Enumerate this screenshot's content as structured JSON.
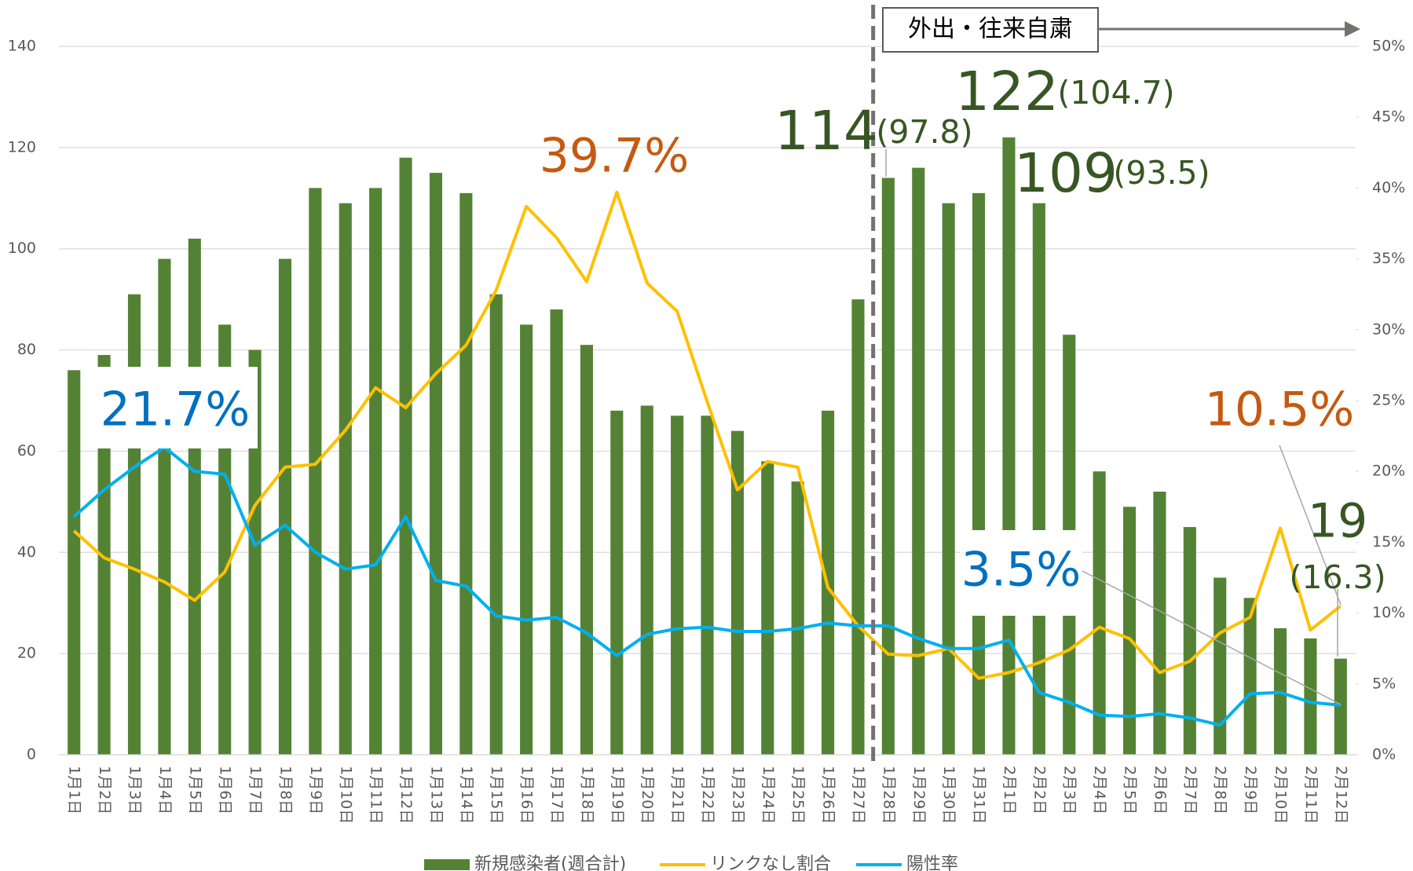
{
  "chart_data": {
    "type": "bar",
    "categories": [
      "1月1日",
      "1月2日",
      "1月3日",
      "1月4日",
      "1月5日",
      "1月6日",
      "1月7日",
      "1月8日",
      "1月9日",
      "1月10日",
      "1月11日",
      "1月12日",
      "1月13日",
      "1月14日",
      "1月15日",
      "1月16日",
      "1月17日",
      "1月18日",
      "1月19日",
      "1月20日",
      "1月21日",
      "1月22日",
      "1月23日",
      "1月24日",
      "1月25日",
      "1月26日",
      "1月27日",
      "1月28日",
      "1月29日",
      "1月30日",
      "1月31日",
      "2月1日",
      "2月2日",
      "2月3日",
      "2月4日",
      "2月5日",
      "2月6日",
      "2月7日",
      "2月8日",
      "2月9日",
      "2月10日",
      "2月11日",
      "2月12日"
    ],
    "series": [
      {
        "name": "新規感染者(週合計)",
        "type": "bar",
        "color": "#548235",
        "values": [
          76,
          79,
          91,
          98,
          102,
          85,
          80,
          98,
          112,
          109,
          112,
          118,
          115,
          111,
          91,
          85,
          88,
          81,
          68,
          69,
          67,
          67,
          64,
          58,
          54,
          68,
          90,
          114,
          116,
          109,
          111,
          122,
          109,
          83,
          56,
          49,
          52,
          45,
          35,
          31,
          25,
          23,
          19
        ]
      },
      {
        "name": "リンクなし割合",
        "type": "line",
        "axis": "y2",
        "color": "#ffc000",
        "values": [
          15.8,
          13.9,
          13.1,
          12.2,
          10.9,
          12.9,
          17.6,
          20.3,
          20.5,
          22.9,
          25.9,
          24.5,
          26.9,
          28.9,
          32.8,
          38.7,
          36.5,
          33.4,
          39.7,
          33.3,
          31.3,
          24.9,
          18.7,
          20.7,
          20.3,
          11.8,
          9.1,
          7.1,
          7.0,
          7.5,
          5.4,
          5.8,
          6.5,
          7.4,
          9.0,
          8.2,
          5.8,
          6.6,
          8.6,
          9.7,
          16.0,
          8.8,
          10.5
        ]
      },
      {
        "name": "陽性率",
        "type": "line",
        "axis": "y2",
        "color": "#00b0f0",
        "values": [
          16.8,
          18.7,
          20.3,
          21.7,
          20.0,
          19.8,
          14.8,
          16.2,
          14.3,
          13.1,
          13.4,
          16.8,
          12.3,
          11.9,
          9.8,
          9.5,
          9.7,
          8.6,
          7.0,
          8.5,
          8.9,
          9.0,
          8.7,
          8.7,
          8.9,
          9.3,
          9.1,
          9.1,
          8.2,
          7.5,
          7.5,
          8.1,
          4.4,
          3.7,
          2.8,
          2.7,
          2.9,
          2.6,
          2.1,
          4.3,
          4.4,
          3.7,
          3.5
        ]
      }
    ],
    "ylim": [
      0,
      140
    ],
    "yticks": [
      0,
      20,
      40,
      60,
      80,
      100,
      120,
      140
    ],
    "y2lim": [
      0,
      50
    ],
    "y2ticks": [
      {
        "value": 0,
        "label": "0%"
      },
      {
        "value": 5,
        "label": "5%"
      },
      {
        "value": 10,
        "label": "10%"
      },
      {
        "value": 15,
        "label": "15%"
      },
      {
        "value": 20,
        "label": "20%"
      },
      {
        "value": 25,
        "label": "25%"
      },
      {
        "value": 30,
        "label": "30%"
      },
      {
        "value": 35,
        "label": "35%"
      },
      {
        "value": 40,
        "label": "40%"
      },
      {
        "value": 45,
        "label": "45%"
      },
      {
        "value": 50,
        "label": "50%"
      }
    ],
    "grid": true,
    "legend": "bottom",
    "period_label": "外出・往来自粛",
    "annotations": [
      {
        "text": "39.7%",
        "color": "#c55a11"
      },
      {
        "text": "21.7%",
        "color": "#0070c0"
      },
      {
        "text": "114",
        "color": "#375623"
      },
      {
        "text": "(97.8)",
        "color": "#375623"
      },
      {
        "text": "122",
        "color": "#375623"
      },
      {
        "text": "(104.7)",
        "color": "#375623"
      },
      {
        "text": "109",
        "color": "#375623"
      },
      {
        "text": "(93.5)",
        "color": "#375623"
      },
      {
        "text": "3.5%",
        "color": "#0070c0"
      },
      {
        "text": "10.5%",
        "color": "#c55a11"
      },
      {
        "text": "19",
        "color": "#375623"
      },
      {
        "text": "(16.3)",
        "color": "#375623"
      }
    ]
  }
}
